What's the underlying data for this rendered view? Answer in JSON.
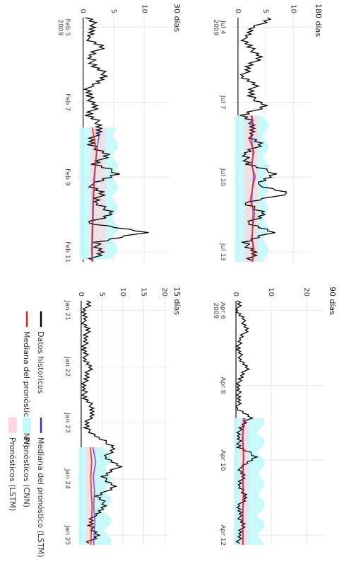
{
  "chart_data": [
    {
      "type": "line",
      "title": "180 días",
      "x_ticks": [
        "Jul 4\n2009",
        "Jul 7",
        "Jul 10",
        "Jul 13"
      ],
      "y_ticks": [
        0,
        5,
        10
      ],
      "ylim": [
        -1,
        13
      ],
      "series": [
        {
          "name": "Datos historicos",
          "x": [
            0,
            4,
            8,
            12,
            16,
            20,
            24,
            28,
            32,
            36,
            40,
            44,
            48,
            52,
            56,
            60,
            64,
            68,
            72,
            76,
            80,
            84,
            88,
            92,
            96,
            100
          ],
          "values": [
            6,
            3,
            1,
            2,
            4,
            2,
            1,
            3,
            2,
            5,
            1,
            3,
            2,
            4,
            1,
            2,
            7,
            3,
            9,
            1,
            5,
            2,
            6,
            1,
            3,
            2
          ]
        },
        {
          "name": "Mediana del pronóstico (CNN)",
          "x": [
            40,
            45,
            50,
            55,
            60,
            65,
            70,
            75,
            80,
            85,
            90,
            95,
            100
          ],
          "values": [
            2.5,
            2.8,
            2.1,
            2.9,
            2.4,
            3.1,
            2.6,
            2.2,
            3.0,
            2.7,
            2.5,
            2.9,
            2.6
          ]
        },
        {
          "name": "Mediana del pronóstico (LSTM)",
          "x": [
            40,
            45,
            50,
            55,
            60,
            65,
            70,
            75,
            80,
            85,
            90,
            95,
            100
          ],
          "values": [
            2.4,
            2.6,
            2.5,
            2.7,
            2.6,
            2.8,
            2.6,
            2.5,
            2.7,
            2.6,
            2.6,
            2.7,
            2.6
          ]
        }
      ]
    },
    {
      "type": "line",
      "title": "90 días",
      "x_ticks": [
        "Apr 6\n2009",
        "Apr 8",
        "Apr 10",
        "Apr 12"
      ],
      "y_ticks": [
        0,
        10,
        20
      ],
      "ylim": [
        -1,
        25
      ],
      "series": [
        {
          "name": "Datos historicos",
          "x": [
            0,
            4,
            8,
            12,
            16,
            20,
            24,
            28,
            32,
            36,
            40,
            44,
            48,
            52,
            56,
            60,
            64,
            68,
            72,
            76,
            80,
            84,
            88,
            92,
            96,
            100
          ],
          "values": [
            1,
            0.5,
            2,
            3,
            1,
            0.8,
            1.5,
            3,
            1,
            0.6,
            1,
            0.5,
            4,
            1.2,
            0.7,
            1,
            6,
            1,
            2,
            0.8,
            3,
            1,
            0.9,
            2,
            1,
            0.7
          ]
        },
        {
          "name": "Mediana del pronóstico (CNN)",
          "x": [
            48,
            56,
            64,
            72,
            80,
            88,
            96,
            100
          ],
          "values": [
            2.5,
            1.8,
            2.2,
            1.9,
            2.1,
            1.8,
            2.0,
            1.9
          ]
        },
        {
          "name": "Mediana del pronóstico (LSTM)",
          "x": [
            48,
            56,
            64,
            72,
            80,
            88,
            96,
            100
          ],
          "values": [
            2.1,
            2.0,
            2.1,
            2.0,
            2.1,
            2.0,
            2.0,
            2.0
          ]
        }
      ]
    },
    {
      "type": "line",
      "title": "30 días",
      "x_ticks": [
        "Feb 5\n2009",
        "Feb 7",
        "Feb 9",
        "Feb 11"
      ],
      "y_ticks": [
        0,
        5,
        10
      ],
      "ylim": [
        -1,
        14
      ],
      "series": [
        {
          "name": "Datos historicos",
          "x": [
            0,
            4,
            8,
            12,
            16,
            20,
            24,
            28,
            32,
            36,
            40,
            44,
            48,
            52,
            56,
            60,
            64,
            68,
            72,
            76,
            80,
            84,
            88,
            92,
            96,
            100
          ],
          "values": [
            1,
            2,
            0.5,
            3,
            1,
            2,
            4,
            1,
            0.8,
            2,
            1,
            3,
            2,
            1,
            4,
            2,
            6,
            1,
            3,
            2,
            5,
            1,
            10,
            2,
            3,
            1
          ]
        },
        {
          "name": "Mediana del pronóstico (CNN)",
          "x": [
            45,
            55,
            65,
            75,
            85,
            95,
            100
          ],
          "values": [
            1.5,
            2.2,
            1.8,
            1.6,
            1.5,
            1.4,
            1.5
          ]
        },
        {
          "name": "Mediana del pronóstico (LSTM)",
          "x": [
            45,
            55,
            65,
            75,
            85,
            95,
            100
          ],
          "values": [
            2.8,
            2.2,
            1.9,
            1.7,
            1.6,
            1.5,
            1.5
          ]
        }
      ]
    },
    {
      "type": "line",
      "title": "15 días",
      "x_ticks": [
        "Jan 21",
        "Jan 22",
        "Jan 23",
        "Jan 24",
        "Jan 25"
      ],
      "y_ticks": [
        0,
        5,
        10,
        15,
        20
      ],
      "ylim": [
        -1,
        21
      ],
      "series": [
        {
          "name": "Datos historicos",
          "x": [
            0,
            4,
            8,
            12,
            16,
            20,
            24,
            28,
            32,
            36,
            40,
            44,
            48,
            52,
            56,
            60,
            64,
            68,
            72,
            76,
            80,
            84,
            88,
            92,
            96,
            100
          ],
          "values": [
            2,
            1,
            0.5,
            1.5,
            1,
            0.8,
            1.2,
            2,
            1,
            0.6,
            1,
            3,
            2,
            1,
            4,
            8,
            6,
            9,
            5,
            8,
            4,
            6,
            3,
            2,
            4,
            1
          ]
        },
        {
          "name": "Mediana del pronóstico (CNN)",
          "x": [
            60,
            66,
            72,
            78,
            84,
            90,
            96,
            100
          ],
          "values": [
            2.2,
            2.5,
            2.3,
            2.4,
            2.6,
            2.5,
            2.4,
            2.3
          ]
        },
        {
          "name": "Mediana del pronóstico (LSTM)",
          "x": [
            60,
            66,
            72,
            78,
            84,
            90,
            96,
            100
          ],
          "values": [
            2.8,
            3.5,
            2.9,
            3.2,
            3.0,
            3.3,
            3.1,
            3.0
          ]
        }
      ]
    }
  ],
  "legend": [
    {
      "label": "Datos historicos",
      "color": "#000000",
      "kind": "line"
    },
    {
      "label": "Mediana del pronóstico (CNN)",
      "color": "#e02020",
      "kind": "line"
    },
    {
      "label": "Mediana del pronóstico (LSTM)",
      "color": "#3030d0",
      "kind": "line"
    },
    {
      "label": "Pronósticos (CNN)",
      "color": "#c6f9fb",
      "kind": "band"
    },
    {
      "label": "Pronósticos (LSTM)",
      "color": "#ffd6dd",
      "kind": "band"
    }
  ],
  "colors": {
    "historical": "#000000",
    "cnn_median": "#e02020",
    "lstm_median": "#3030d0",
    "cnn_band": "#c6f9fb",
    "lstm_band": "#ffd6dd"
  }
}
